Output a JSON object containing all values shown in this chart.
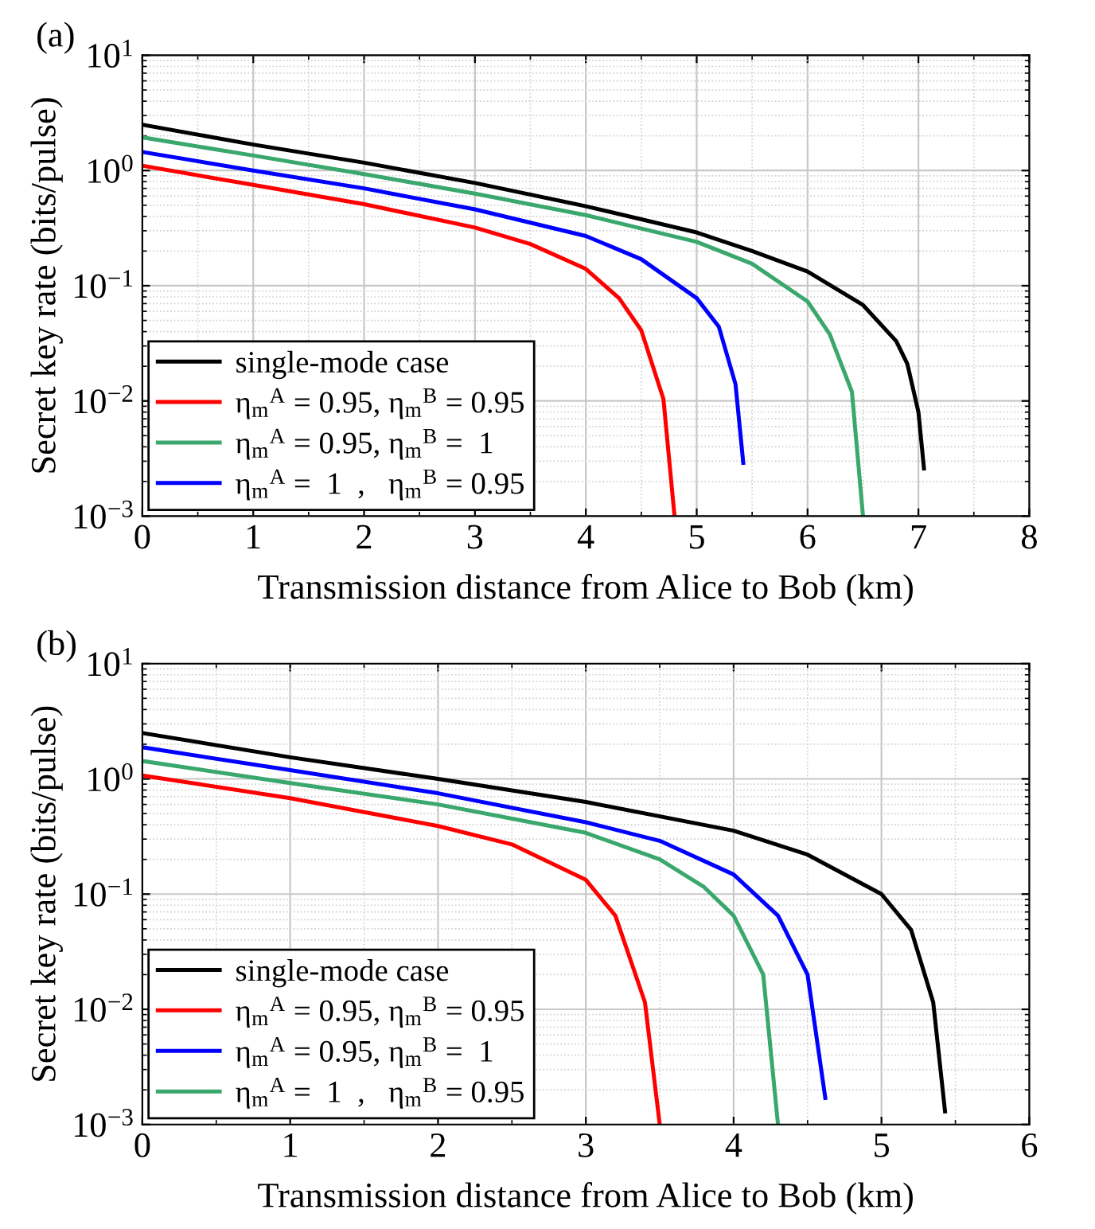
{
  "chart_data": [
    {
      "type": "line",
      "title": "(a)",
      "xlabel": "Transmission distance from Alice to Bob (km)",
      "ylabel": "Secret key rate (bits/pulse)",
      "log": "y",
      "grid": true,
      "legend": "bottom left",
      "line_style": "solid",
      "xlim": [
        0,
        8
      ],
      "xticks": [
        0,
        1,
        2,
        3,
        4,
        5,
        6,
        7,
        8
      ],
      "ylim": [
        0.001,
        10
      ],
      "yticks": [
        {
          "value": 0.001,
          "label": "10$^{−3}$"
        },
        {
          "value": 0.01,
          "label": "10$^{−2}$"
        },
        {
          "value": 0.1,
          "label": "10$^{−1}$"
        },
        {
          "value": 1,
          "label": "10$^{0}$"
        },
        {
          "value": 10,
          "label": "10$^{1}$"
        }
      ],
      "series": [
        {
          "name": "single-mode case",
          "color": "#000000",
          "x": [
            0,
            1,
            2,
            3,
            4,
            5,
            5.5,
            6,
            6.5,
            6.8,
            6.9,
            7,
            7.05
          ],
          "values": [
            2.5,
            1.68,
            1.17,
            0.78,
            0.49,
            0.29,
            0.2,
            0.133,
            0.068,
            0.033,
            0.021,
            0.008,
            0.0026
          ]
        },
        {
          "name": "η$_{m}$$^{A}$ = 0.95, η$_{m}$$^{B}$ = 0.95",
          "color": "#ff0000",
          "x": [
            0,
            1,
            2,
            3,
            3.5,
            4,
            4.3,
            4.5,
            4.7,
            4.8
          ],
          "values": [
            1.1,
            0.75,
            0.51,
            0.32,
            0.23,
            0.14,
            0.078,
            0.041,
            0.0104,
            0.001
          ]
        },
        {
          "name": "η$_{m}$$^{A}$ = 0.95, η$_{m}$$^{B}$ =  1",
          "color": "#3aa76d",
          "x": [
            0,
            1,
            2,
            3,
            4,
            5,
            5.5,
            6,
            6.2,
            6.4,
            6.5
          ],
          "values": [
            1.94,
            1.35,
            0.93,
            0.63,
            0.41,
            0.24,
            0.155,
            0.073,
            0.038,
            0.012,
            0.001
          ]
        },
        {
          "name": "η$_{m}$$^{A}$ =  1  ,   η$_{m}$$^{B}$ = 0.95",
          "color": "#0000ff",
          "x": [
            0,
            1,
            2,
            3,
            4,
            4.5,
            5,
            5.2,
            5.35,
            5.42
          ],
          "values": [
            1.45,
            1.0,
            0.7,
            0.46,
            0.27,
            0.17,
            0.078,
            0.044,
            0.014,
            0.0029
          ]
        }
      ]
    },
    {
      "type": "line",
      "title": "(b)",
      "xlabel": "Transmission distance from Alice to Bob (km)",
      "ylabel": "Secret key rate (bits/pulse)",
      "log": "y",
      "grid": true,
      "legend": "bottom left",
      "line_style": "solid",
      "xlim": [
        0,
        6
      ],
      "xticks": [
        0,
        1,
        2,
        3,
        4,
        5,
        6
      ],
      "ylim": [
        0.001,
        10
      ],
      "yticks": [
        {
          "value": 0.001,
          "label": "10$^{−3}$"
        },
        {
          "value": 0.01,
          "label": "10$^{−2}$"
        },
        {
          "value": 0.1,
          "label": "10$^{−1}$"
        },
        {
          "value": 1,
          "label": "10$^{0}$"
        },
        {
          "value": 10,
          "label": "10$^{1}$"
        }
      ],
      "series": [
        {
          "name": "single-mode case",
          "color": "#000000",
          "x": [
            0,
            1,
            2,
            3,
            4,
            4.5,
            5,
            5.2,
            5.35,
            5.43
          ],
          "values": [
            2.5,
            1.54,
            1.0,
            0.63,
            0.355,
            0.22,
            0.1,
            0.049,
            0.0115,
            0.0013
          ]
        },
        {
          "name": "η$_{m}$$^{A}$ = 0.95, η$_{m}$$^{B}$ = 0.95",
          "color": "#ff0000",
          "x": [
            0,
            1,
            2,
            2.5,
            3,
            3.2,
            3.4,
            3.5
          ],
          "values": [
            1.07,
            0.68,
            0.39,
            0.27,
            0.133,
            0.065,
            0.0115,
            0.001
          ]
        },
        {
          "name": "η$_{m}$$^{A}$ = 0.95, η$_{m}$$^{B}$ =  1",
          "color": "#0000ff",
          "x": [
            0,
            1,
            2,
            3,
            3.5,
            4,
            4.3,
            4.5,
            4.62
          ],
          "values": [
            1.88,
            1.19,
            0.75,
            0.42,
            0.29,
            0.148,
            0.065,
            0.02,
            0.0017
          ]
        },
        {
          "name": "η$_{m}$$^{A}$ =  1  ,   η$_{m}$$^{B}$ = 0.95",
          "color": "#3aa76d",
          "x": [
            0,
            1,
            2,
            3,
            3.5,
            3.8,
            4,
            4.2,
            4.3
          ],
          "values": [
            1.43,
            0.92,
            0.6,
            0.34,
            0.2,
            0.115,
            0.065,
            0.02,
            0.001
          ]
        }
      ]
    }
  ]
}
